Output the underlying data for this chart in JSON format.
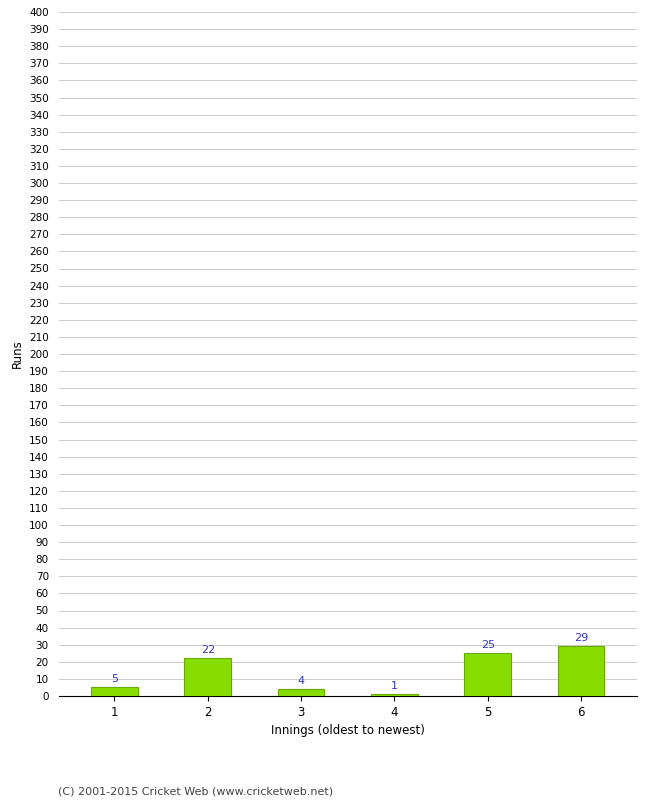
{
  "categories": [
    1,
    2,
    3,
    4,
    5,
    6
  ],
  "values": [
    5,
    22,
    4,
    1,
    25,
    29
  ],
  "bar_color": "#88dd00",
  "bar_edge_color": "#66aa00",
  "ylabel": "Runs",
  "xlabel": "Innings (oldest to newest)",
  "ylim": [
    0,
    400
  ],
  "ytick_step": 10,
  "background_color": "#ffffff",
  "grid_color": "#cccccc",
  "label_color": "#3333cc",
  "footer": "(C) 2001-2015 Cricket Web (www.cricketweb.net)"
}
